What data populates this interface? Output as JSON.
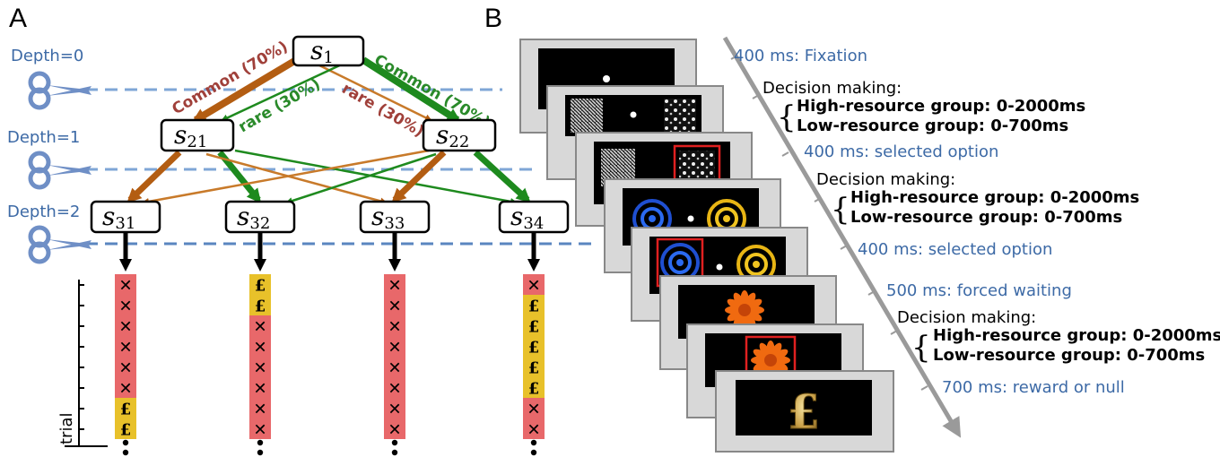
{
  "colors": {
    "common_brown": "#b35d12",
    "rare_brown": "#c87a2a",
    "common_green": "#1e8a1e",
    "label_brown": "#a0403a",
    "label_green": "#2a8a2a",
    "depth_blue": "#3d6aa6",
    "dashed_line": "#7fa6d6",
    "loss_cell": "#e8686a",
    "reward_cell": "#e8c12a",
    "screen_frame": "#d8d8d8",
    "timeline_arrow": "#9a9a9a"
  },
  "panels": {
    "a": "A",
    "b": "B"
  },
  "depths": [
    "Depth=0",
    "Depth=1",
    "Depth=2"
  ],
  "nodes": {
    "s1": {
      "base": "s",
      "sub": "1"
    },
    "s21": {
      "base": "s",
      "sub": "21"
    },
    "s22": {
      "base": "s",
      "sub": "22"
    },
    "s31": {
      "base": "s",
      "sub": "31"
    },
    "s32": {
      "base": "s",
      "sub": "32"
    },
    "s33": {
      "base": "s",
      "sub": "33"
    },
    "s34": {
      "base": "s",
      "sub": "34"
    }
  },
  "transitions": {
    "common_left": "Common (70%)",
    "common_right": "Common (70%)",
    "rare_left": "rare (30%)",
    "rare_right": "rare (30%)"
  },
  "outcomes": {
    "s31": [
      "x",
      "x",
      "x",
      "x",
      "x",
      "x",
      "£",
      "£"
    ],
    "s32": [
      "£",
      "£",
      "x",
      "x",
      "x",
      "x",
      "x",
      "x"
    ],
    "s33": [
      "x",
      "x",
      "x",
      "x",
      "x",
      "x",
      "x",
      "x"
    ],
    "s34": [
      "x",
      "£",
      "£",
      "£",
      "£",
      "£",
      "x",
      "x"
    ]
  },
  "trial_axis_label": "trial",
  "ellipsis": "•\n•",
  "timeline": {
    "fixation": "400 ms: Fixation",
    "decision_1": "Decision making:",
    "high_1": "High-resource group: 0-2000ms",
    "low_1": "Low-resource group:  0-700ms",
    "selected_1": "400 ms: selected option",
    "decision_2": "Decision making:",
    "high_2": "High-resource group: 0-2000ms",
    "low_2": "Low-resource group:  0-700ms",
    "selected_2": "400 ms: selected option",
    "forced_wait": "500 ms: forced waiting",
    "decision_3": "Decision making:",
    "high_3": "High-resource group: 0-2000ms",
    "low_3": "Low-resource group:  0-700ms",
    "reward": "700 ms: reward or null"
  },
  "screen_symbols": {
    "reward_glyph": "£"
  },
  "icons": {
    "scissors": "scissors-icon",
    "fractal": "fractal-stimulus-icon",
    "ring": "ring-stimulus-icon",
    "flower": "flower-stimulus-icon",
    "coin": "pound-coin-icon"
  }
}
